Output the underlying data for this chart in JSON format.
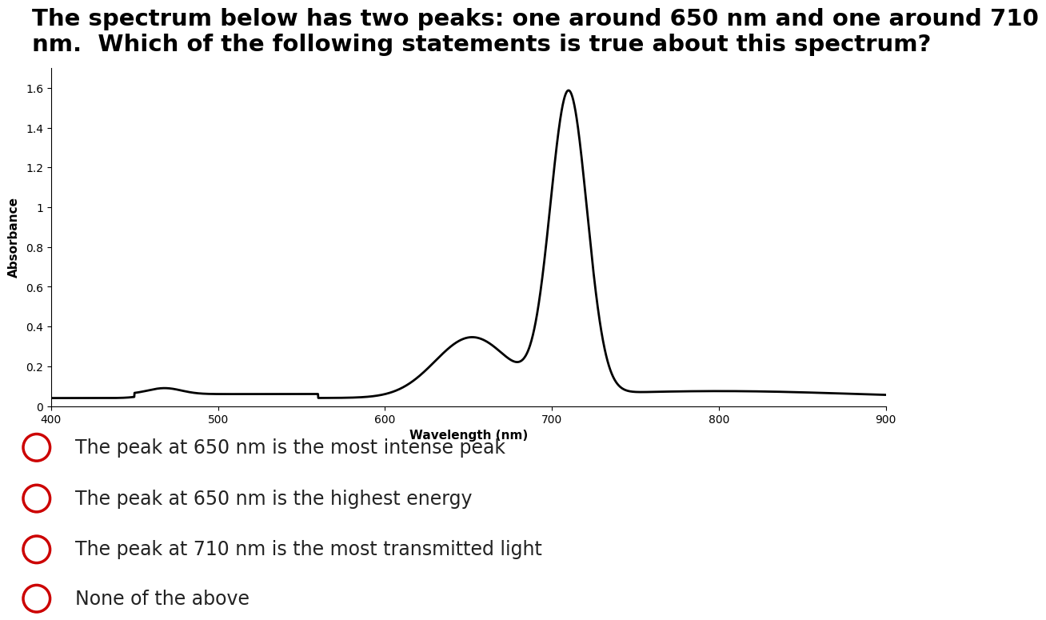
{
  "title_line1": "The spectrum below has two peaks: one around 650 nm and one around 710",
  "title_line2": "nm.  Which of the following statements is true about this spectrum?",
  "xlabel": "Wavelength (nm)",
  "ylabel": "Absorbance",
  "xlim": [
    400,
    900
  ],
  "ylim": [
    0,
    1.7
  ],
  "yticks": [
    0,
    0.2,
    0.4,
    0.6,
    0.8,
    1.0,
    1.2,
    1.4,
    1.6
  ],
  "ytick_labels": [
    "0",
    "0.2",
    "0.4",
    "0.6",
    "0.8",
    "1",
    "1.2",
    "1.4",
    "1.6"
  ],
  "xticks": [
    400,
    500,
    600,
    700,
    800,
    900
  ],
  "line_color": "#000000",
  "line_width": 2.0,
  "background_color": "#ffffff",
  "choices": [
    "The peak at 650 nm is the most intense peak",
    "The peak at 650 nm is the highest energy",
    "The peak at 710 nm is the most transmitted light",
    "None of the above"
  ],
  "circle_color": "#cc0000",
  "title_fontsize": 21,
  "axis_label_fontsize": 11,
  "tick_fontsize": 10,
  "choice_fontsize": 17
}
